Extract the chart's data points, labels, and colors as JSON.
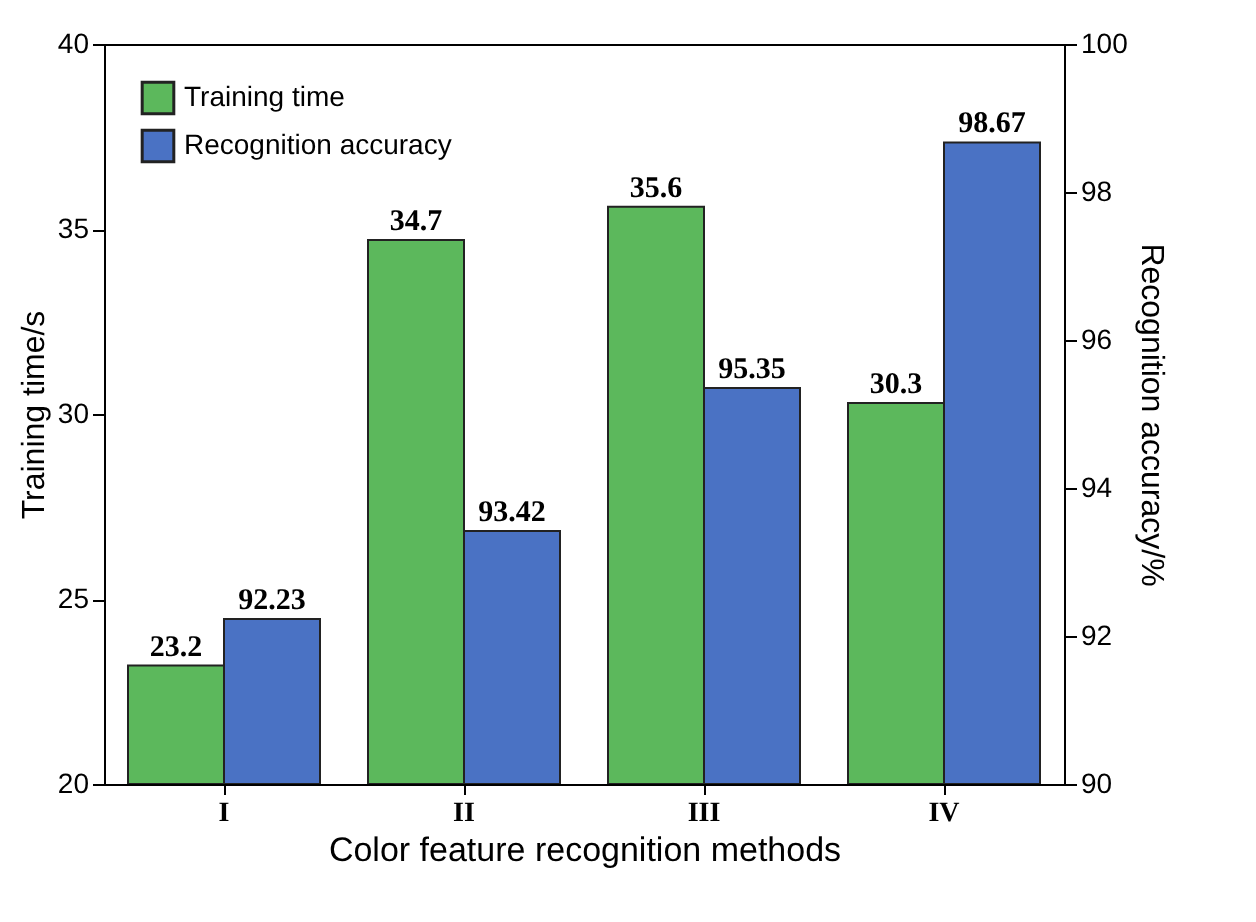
{
  "chart_data": {
    "type": "bar",
    "xlabel": "Color feature recognition methods",
    "ylabel": "Training time/s",
    "y2label": "Recognition accuracy/%",
    "categories": [
      "I",
      "II",
      "III",
      "IV"
    ],
    "series": [
      {
        "name": "Training time",
        "color": "#5cb85c",
        "values": [
          23.2,
          34.7,
          35.6,
          30.3
        ]
      },
      {
        "name": "Recognition accuracy",
        "color": "#4a72c4",
        "values": [
          92.23,
          93.42,
          95.35,
          98.67
        ],
        "axis": "y2"
      }
    ],
    "ylim": [
      20,
      40
    ],
    "yticks": [
      20,
      25,
      30,
      35,
      40
    ],
    "y2lim": [
      90,
      100
    ],
    "y2ticks": [
      90,
      92,
      94,
      96,
      98,
      100
    ],
    "data_labels": true,
    "legend": "top left",
    "grid": false
  }
}
